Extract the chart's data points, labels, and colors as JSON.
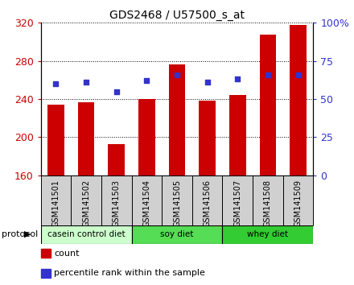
{
  "title": "GDS2468 / U57500_s_at",
  "samples": [
    "GSM141501",
    "GSM141502",
    "GSM141503",
    "GSM141504",
    "GSM141505",
    "GSM141506",
    "GSM141507",
    "GSM141508",
    "GSM141509"
  ],
  "counts": [
    234,
    237,
    193,
    240,
    276,
    238,
    244,
    308,
    318
  ],
  "percentile_ranks": [
    60,
    61,
    55,
    62,
    66,
    61,
    63,
    66,
    66
  ],
  "ylim_left": [
    160,
    320
  ],
  "ylim_right": [
    0,
    100
  ],
  "yticks_left": [
    160,
    200,
    240,
    280,
    320
  ],
  "yticks_right": [
    0,
    25,
    50,
    75,
    100
  ],
  "bar_color": "#cc0000",
  "dot_color": "#3333cc",
  "protocol_groups": [
    {
      "label": "casein control diet",
      "start": 0,
      "end": 2,
      "color": "#ccffcc"
    },
    {
      "label": "soy diet",
      "start": 3,
      "end": 5,
      "color": "#55dd55"
    },
    {
      "label": "whey diet",
      "start": 6,
      "end": 8,
      "color": "#33cc33"
    }
  ],
  "protocol_label": "protocol",
  "legend_items": [
    {
      "color": "#cc0000",
      "label": "count"
    },
    {
      "color": "#3333cc",
      "label": "percentile rank within the sample"
    }
  ],
  "tick_label_color_left": "#cc0000",
  "tick_label_color_right": "#3333cc",
  "bar_width": 0.55,
  "sample_fontsize": 7.0,
  "title_fontsize": 10
}
